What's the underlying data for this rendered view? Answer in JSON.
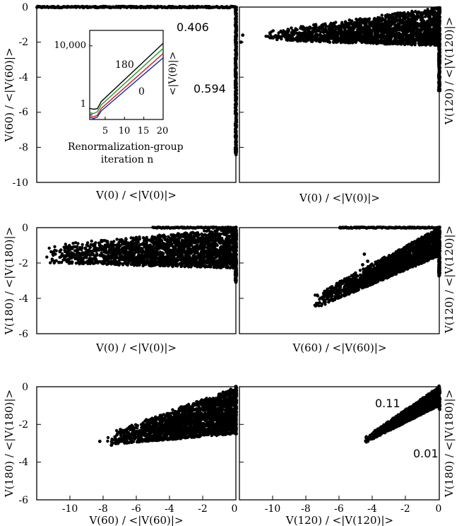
{
  "chart_data": [
    {
      "type": "scatter",
      "panel": "top-left",
      "xlabel": "V(0) / <|V(0)|>",
      "ylabel": "V(60) / <|V(60)|>",
      "xlim": [
        -12,
        0
      ],
      "ylim": [
        -10,
        0
      ],
      "yticks": [
        0,
        -2,
        -4,
        -6,
        -8,
        -10
      ],
      "annotations": [
        "0.406",
        "0.594"
      ],
      "clusters": [
        {
          "kind": "line",
          "from": [
            -12,
            0
          ],
          "to": [
            0,
            0
          ],
          "count": 260,
          "spread": 0.04
        },
        {
          "kind": "line",
          "from": [
            0,
            0
          ],
          "to": [
            0,
            -8.4
          ],
          "count": 260,
          "spread": 0.04
        }
      ],
      "inset": {
        "type": "line",
        "xlabel": "Renormalization-group iteration n",
        "ylabel": "<|V(θ)|>",
        "xticks": [
          5,
          10,
          15,
          20
        ],
        "yticks": [
          "1",
          "10,000"
        ],
        "xlim": [
          1,
          20
        ],
        "ylim_log10": [
          -0.3,
          4.9
        ],
        "series_labels": [
          "180",
          "0"
        ],
        "series": [
          {
            "color": "#000000",
            "x": [
              1,
              2,
              3,
              4,
              20
            ],
            "log10_y": [
              0.35,
              0.3,
              0.33,
              0.75,
              4.15
            ]
          },
          {
            "color": "#1a9a2a",
            "x": [
              1,
              2,
              3,
              4,
              20
            ],
            "log10_y": [
              0.1,
              0.05,
              0.15,
              0.55,
              3.85
            ]
          },
          {
            "color": "#d81a1a",
            "x": [
              1,
              2,
              3,
              4,
              20
            ],
            "log10_y": [
              -0.05,
              -0.15,
              -0.05,
              0.35,
              3.55
            ]
          },
          {
            "color": "#1a2ab0",
            "x": [
              1,
              2,
              3,
              4,
              20
            ],
            "log10_y": [
              -0.15,
              -0.25,
              -0.15,
              0.2,
              3.3
            ]
          }
        ]
      }
    },
    {
      "type": "scatter",
      "panel": "top-right",
      "xlabel": "V(0) / <|V(0)|>",
      "ylabel": "V(120) / <|V(120)|>",
      "xlim": [
        -12,
        0
      ],
      "ylim": [
        -10,
        0
      ],
      "clusters": [
        {
          "kind": "wedge",
          "x_min": -10.5,
          "top_at_min": -1.4,
          "bot_at_min": -1.9,
          "top_at_0": 0,
          "bot_at_0": -2.2,
          "count": 1800
        },
        {
          "kind": "line",
          "from": [
            0,
            0
          ],
          "to": [
            0,
            -4.8
          ],
          "count": 200,
          "spread": 0.04
        },
        {
          "kind": "points",
          "x": [
            -11.8,
            -11.9
          ],
          "y": [
            -1.6,
            -2.0
          ]
        }
      ]
    },
    {
      "type": "scatter",
      "panel": "middle-left",
      "xlabel": "V(0) / <|V(0)|>",
      "ylabel": "V(180) / <|V(180)|>",
      "xlim": [
        -12,
        0
      ],
      "ylim": [
        -6,
        0
      ],
      "yticks": [
        0,
        -2,
        -4,
        -6
      ],
      "clusters": [
        {
          "kind": "wedge",
          "x_min": -11.5,
          "top_at_min": -1.0,
          "bot_at_min": -2.0,
          "top_at_0": 0,
          "bot_at_0": -2.3,
          "count": 2000
        },
        {
          "kind": "line",
          "from": [
            -5,
            0
          ],
          "to": [
            0,
            0
          ],
          "count": 80,
          "spread": 0.03
        },
        {
          "kind": "line",
          "from": [
            0,
            0
          ],
          "to": [
            0,
            -3.1
          ],
          "count": 120,
          "spread": 0.04
        }
      ]
    },
    {
      "type": "scatter",
      "panel": "middle-right",
      "xlabel": "V(60) / <|V(60)|>",
      "ylabel": "V(120) / <|V(120)|>",
      "xlim": [
        -12,
        0
      ],
      "ylim": [
        -6,
        0
      ],
      "clusters": [
        {
          "kind": "wedge",
          "x_min": -7.5,
          "top_at_min": -3.8,
          "bot_at_min": -4.6,
          "top_at_0": 0,
          "bot_at_0": -1.6,
          "count": 2000
        },
        {
          "kind": "line",
          "from": [
            -6,
            0
          ],
          "to": [
            0,
            0
          ],
          "count": 120,
          "spread": 0.03
        },
        {
          "kind": "line",
          "from": [
            0,
            0
          ],
          "to": [
            0,
            -2.7
          ],
          "count": 120,
          "spread": 0.04
        },
        {
          "kind": "points",
          "x": [
            -4.5,
            -4.3,
            -4.6
          ],
          "y": [
            -1.5,
            -1.9,
            -2.1
          ]
        }
      ]
    },
    {
      "type": "scatter",
      "panel": "bottom-left",
      "xlabel": "V(60) / <|V(60)|>",
      "ylabel": "V(180) / <|V(180)|>",
      "xlim": [
        -12,
        0
      ],
      "ylim": [
        -6,
        0
      ],
      "xticks": [
        -10,
        -8,
        -6,
        -4,
        -2,
        0
      ],
      "yticks": [
        0,
        -2,
        -4,
        -6
      ],
      "clusters": [
        {
          "kind": "wedge",
          "x_min": -7.8,
          "top_at_min": -2.5,
          "bot_at_min": -3.1,
          "top_at_0": 0,
          "bot_at_0": -2.5,
          "count": 2000
        },
        {
          "kind": "line",
          "from": [
            0,
            0
          ],
          "to": [
            0,
            -2.5
          ],
          "count": 80,
          "spread": 0.04
        },
        {
          "kind": "points",
          "x": [
            -8.2,
            -7.5,
            -7.1
          ],
          "y": [
            -2.9,
            -3.1,
            -3.0
          ]
        }
      ]
    },
    {
      "type": "scatter",
      "panel": "bottom-right",
      "xlabel": "V(120) / <|V(120)|>",
      "ylabel": "V(180) / <|V(180)|>",
      "xlim": [
        -12,
        0
      ],
      "ylim": [
        -6,
        0
      ],
      "xticks": [
        -10,
        -8,
        -6,
        -4,
        -2,
        0
      ],
      "annotations": [
        "0.11",
        "0.01"
      ],
      "clusters": [
        {
          "kind": "wedge",
          "x_min": -4.5,
          "top_at_min": -2.7,
          "bot_at_min": -3.0,
          "top_at_0": 0,
          "bot_at_0": -1.0,
          "count": 1600
        },
        {
          "kind": "line",
          "from": [
            0,
            0
          ],
          "to": [
            0,
            -1.2
          ],
          "count": 60,
          "spread": 0.04
        }
      ]
    }
  ]
}
